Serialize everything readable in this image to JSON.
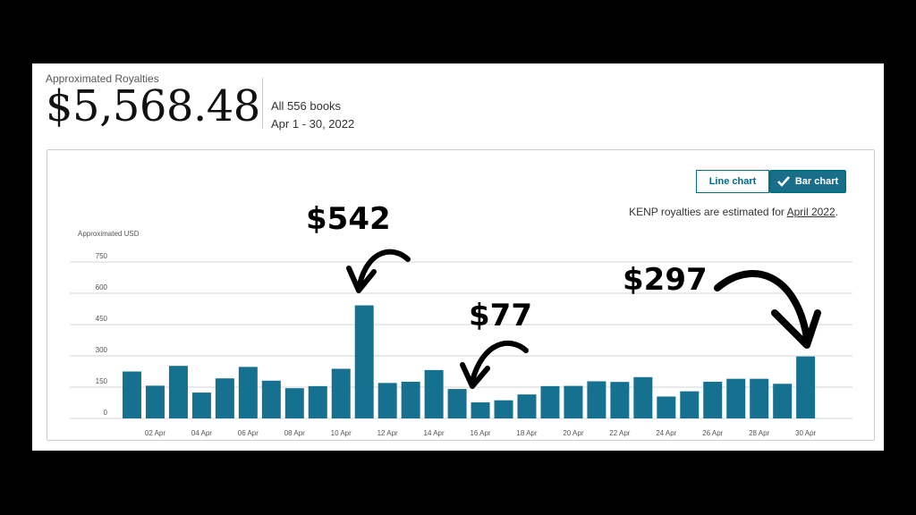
{
  "header": {
    "label": "Approximated Royalties",
    "amount": "$5,568.48",
    "books": "All 556 books",
    "period": "Apr 1 - 30, 2022"
  },
  "toggle": {
    "line_label": "Line chart",
    "bar_label": "Bar chart"
  },
  "kenp": {
    "text": "KENP royalties are estimated for ",
    "link": "April 2022",
    "suffix": "."
  },
  "annotations": [
    "$542",
    "$77",
    "$297"
  ],
  "colors": {
    "bar": "#15718f",
    "accent": "#007185"
  },
  "chart_data": {
    "type": "bar",
    "ylabel": "Approximated USD",
    "ylim": [
      0,
      750
    ],
    "yticks": [
      0,
      150,
      300,
      450,
      600,
      750
    ],
    "grid": true,
    "x_tick_labels": [
      "02 Apr",
      "04 Apr",
      "06 Apr",
      "08 Apr",
      "10 Apr",
      "12 Apr",
      "14 Apr",
      "16 Apr",
      "18 Apr",
      "20 Apr",
      "22 Apr",
      "24 Apr",
      "26 Apr",
      "28 Apr",
      "30 Apr"
    ],
    "categories": [
      "01 Apr",
      "02 Apr",
      "03 Apr",
      "04 Apr",
      "05 Apr",
      "06 Apr",
      "07 Apr",
      "08 Apr",
      "09 Apr",
      "10 Apr",
      "11 Apr",
      "12 Apr",
      "13 Apr",
      "14 Apr",
      "15 Apr",
      "16 Apr",
      "17 Apr",
      "18 Apr",
      "19 Apr",
      "20 Apr",
      "21 Apr",
      "22 Apr",
      "23 Apr",
      "24 Apr",
      "25 Apr",
      "26 Apr",
      "27 Apr",
      "28 Apr",
      "29 Apr",
      "30 Apr"
    ],
    "values": [
      225,
      157,
      252,
      124,
      192,
      247,
      181,
      145,
      155,
      238,
      542,
      170,
      176,
      232,
      141,
      77,
      87,
      115,
      155,
      156,
      178,
      175,
      198,
      105,
      130,
      176,
      190,
      190,
      166,
      297
    ]
  }
}
